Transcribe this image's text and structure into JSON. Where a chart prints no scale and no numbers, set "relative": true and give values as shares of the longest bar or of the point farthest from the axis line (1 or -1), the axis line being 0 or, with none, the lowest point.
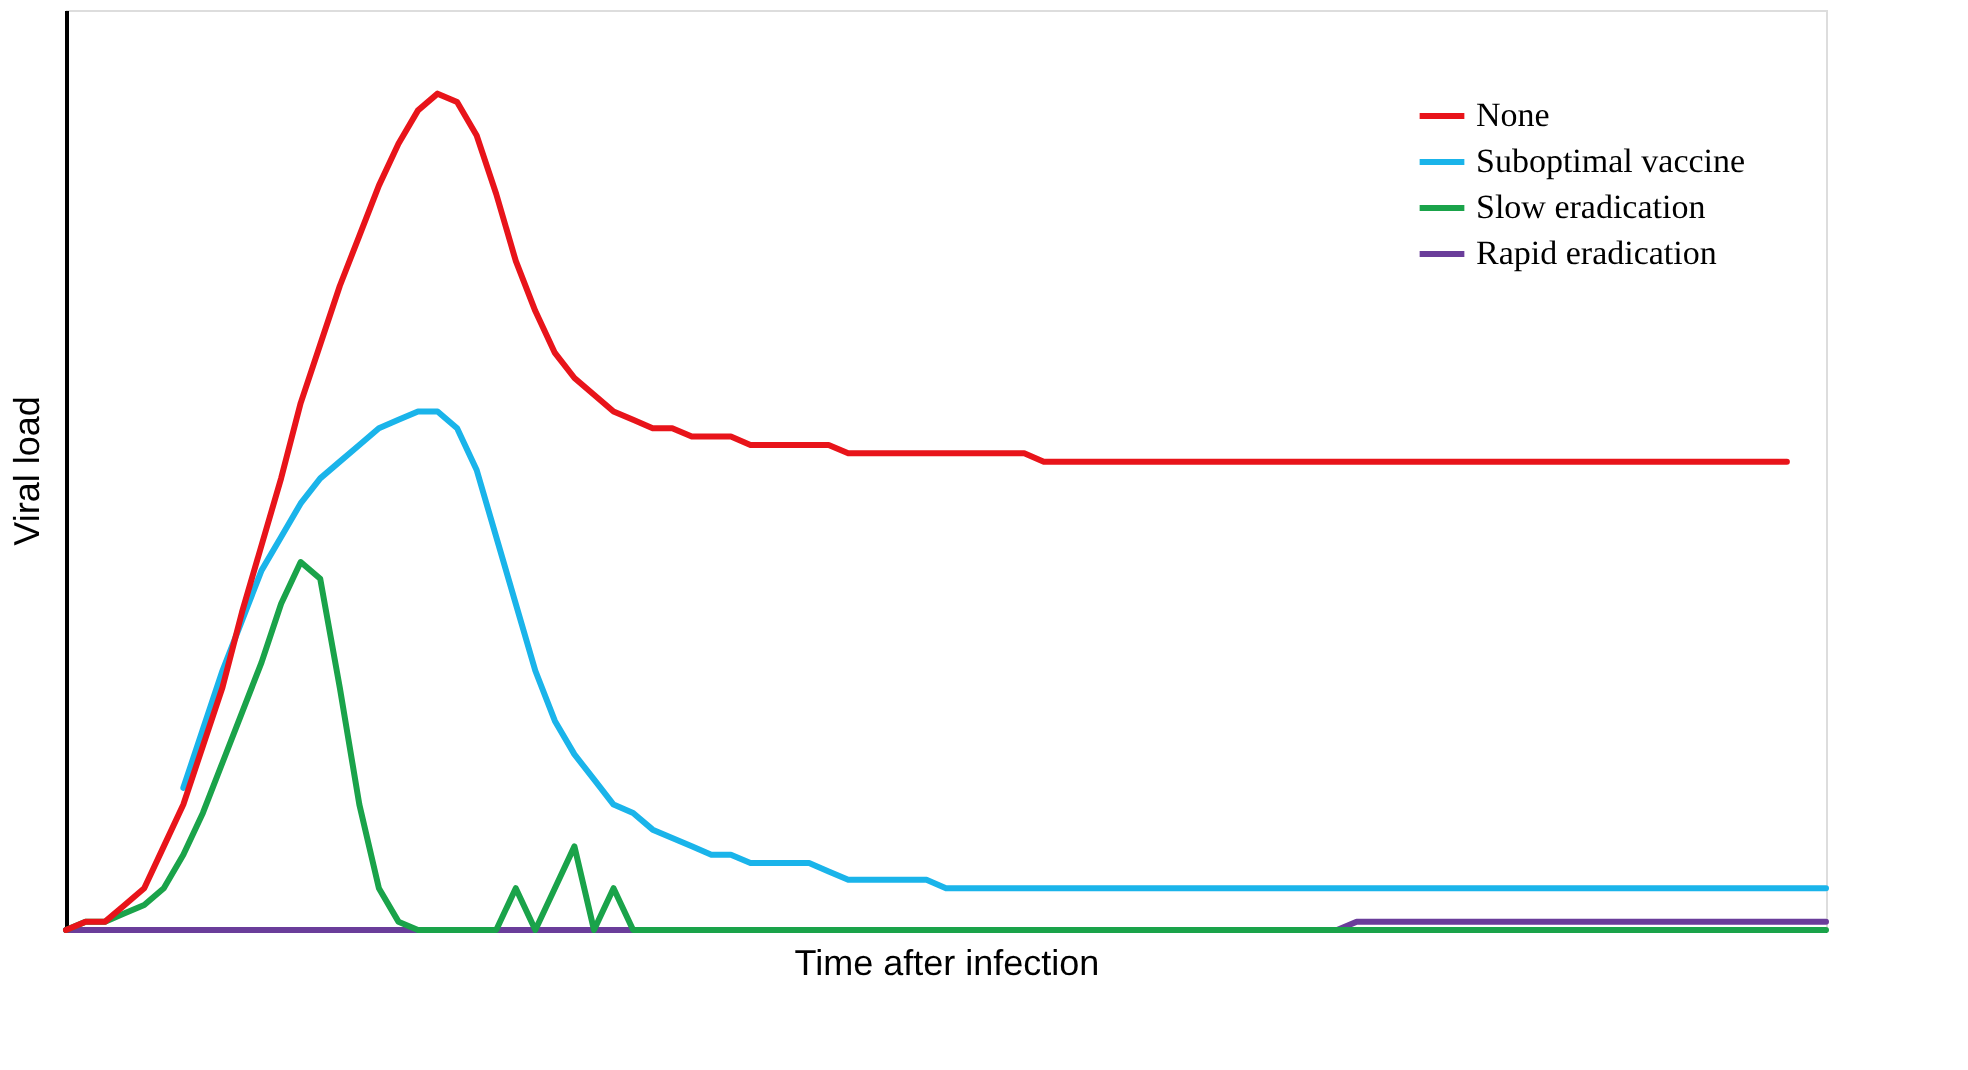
{
  "chart_data": {
    "type": "line",
    "relative": true,
    "xlabel": "Time after infection",
    "ylabel": "Viral load",
    "legend": "top right",
    "tick_labels": false,
    "categories": [
      null,
      null,
      null,
      null,
      null,
      null,
      null,
      null,
      null,
      null,
      null,
      null,
      null,
      null,
      null,
      null,
      null,
      null,
      null,
      null,
      null,
      null,
      null,
      null,
      null,
      null,
      null,
      null,
      null,
      null,
      null,
      null,
      null,
      null,
      null,
      null,
      null,
      null,
      null,
      null,
      null,
      null,
      null,
      null,
      null,
      null,
      null,
      null,
      null,
      null,
      null,
      null,
      null,
      null,
      null,
      null,
      null,
      null,
      null,
      null,
      null,
      null,
      null,
      null,
      null,
      null,
      null,
      null,
      null,
      null,
      null,
      null,
      null,
      null,
      null,
      null,
      null,
      null,
      null,
      null,
      null,
      null,
      null,
      null,
      null,
      null,
      null,
      null,
      null,
      null,
      null
    ],
    "series": [
      {
        "name": "None",
        "color": "#e8141a",
        "values": [
          0,
          0.01,
          0.01,
          0.03,
          0.05,
          0.1,
          0.15,
          0.22,
          0.29,
          0.38,
          0.46,
          0.54,
          0.63,
          0.7,
          0.77,
          0.83,
          0.89,
          0.94,
          0.98,
          1.0,
          0.99,
          0.95,
          0.88,
          0.8,
          0.74,
          0.69,
          0.66,
          0.64,
          0.62,
          0.61,
          0.6,
          0.6,
          0.59,
          0.59,
          0.59,
          0.58,
          0.58,
          0.58,
          0.58,
          0.58,
          0.57,
          0.57,
          0.57,
          0.57,
          0.57,
          0.57,
          0.57,
          0.57,
          0.57,
          0.57,
          0.56,
          0.56,
          0.56,
          0.56,
          0.56,
          0.56,
          0.56,
          0.56,
          0.56,
          0.56,
          0.56,
          0.56,
          0.56,
          0.56,
          0.56,
          0.56,
          0.56,
          0.56,
          0.56,
          0.56,
          0.56,
          0.56,
          0.56,
          0.56,
          0.56,
          0.56,
          0.56,
          0.56,
          0.56,
          0.56,
          0.56,
          0.56,
          0.56,
          0.56,
          0.56,
          0.56,
          0.56,
          0.56,
          0.56,
          null,
          null
        ]
      },
      {
        "name": "Suboptimal vaccine",
        "color": "#1ab4ea",
        "values": [
          null,
          null,
          null,
          null,
          null,
          null,
          0.17,
          0.24,
          0.31,
          0.37,
          0.43,
          0.47,
          0.51,
          0.54,
          0.56,
          0.58,
          0.6,
          0.61,
          0.62,
          0.62,
          0.6,
          0.55,
          0.47,
          0.39,
          0.31,
          0.25,
          0.21,
          0.18,
          0.15,
          0.14,
          0.12,
          0.11,
          0.1,
          0.09,
          0.09,
          0.08,
          0.08,
          0.08,
          0.08,
          0.07,
          0.06,
          0.06,
          0.06,
          0.06,
          0.06,
          0.05,
          0.05,
          0.05,
          0.05,
          0.05,
          0.05,
          0.05,
          0.05,
          0.05,
          0.05,
          0.05,
          0.05,
          0.05,
          0.05,
          0.05,
          0.05,
          0.05,
          0.05,
          0.05,
          0.05,
          0.05,
          0.05,
          0.05,
          0.05,
          0.05,
          0.05,
          0.05,
          0.05,
          0.05,
          0.05,
          0.05,
          0.05,
          0.05,
          0.05,
          0.05,
          0.05,
          0.05,
          0.05,
          0.05,
          0.05,
          0.05,
          0.05,
          0.05,
          0.05,
          0.05,
          0.05
        ]
      },
      {
        "name": "Slow eradication",
        "color": "#1aa34a",
        "values": [
          0,
          0.01,
          0.01,
          0.02,
          0.03,
          0.05,
          0.09,
          0.14,
          0.2,
          0.26,
          0.32,
          0.39,
          0.44,
          0.42,
          0.29,
          0.15,
          0.05,
          0.01,
          0,
          0,
          0,
          0,
          0,
          0.05,
          0,
          0.05,
          0.1,
          0,
          0.05,
          0,
          0,
          0,
          0,
          0,
          0,
          0,
          0,
          0,
          0,
          0,
          0,
          0,
          0,
          0,
          0,
          0,
          0,
          0,
          0,
          0,
          0,
          0,
          0,
          0,
          0,
          0,
          0,
          0,
          0,
          0,
          0,
          0,
          0,
          0,
          0,
          0,
          0,
          0,
          0,
          0,
          0,
          0,
          0,
          0,
          0,
          0,
          0,
          0,
          0,
          0,
          0,
          0,
          0,
          0,
          0,
          0,
          0,
          0,
          0,
          0,
          0
        ]
      },
      {
        "name": "Rapid eradication",
        "color": "#6a3d9a",
        "values": [
          0,
          0,
          0,
          0,
          0,
          0,
          0,
          0,
          0,
          0,
          0,
          0,
          0,
          0,
          0,
          0,
          0,
          0,
          0,
          0,
          0,
          0,
          0,
          0,
          0,
          0,
          0,
          0,
          0,
          0,
          0,
          0,
          0,
          0,
          0,
          0,
          0,
          0,
          0,
          0,
          0,
          0,
          0,
          0,
          0,
          0,
          0,
          0,
          0,
          0,
          0,
          0,
          0,
          0,
          0,
          0,
          0,
          0,
          0,
          0,
          0,
          0,
          0,
          0,
          0,
          0,
          0.01,
          0.01,
          0.01,
          0.01,
          0.01,
          0.01,
          0.01,
          0.01,
          0.01,
          0.01,
          0.01,
          0.01,
          0.01,
          0.01,
          0.01,
          0.01,
          0.01,
          0.01,
          0.01,
          0.01,
          0.01,
          0.01,
          0.01,
          0.01,
          0.01
        ]
      }
    ]
  }
}
